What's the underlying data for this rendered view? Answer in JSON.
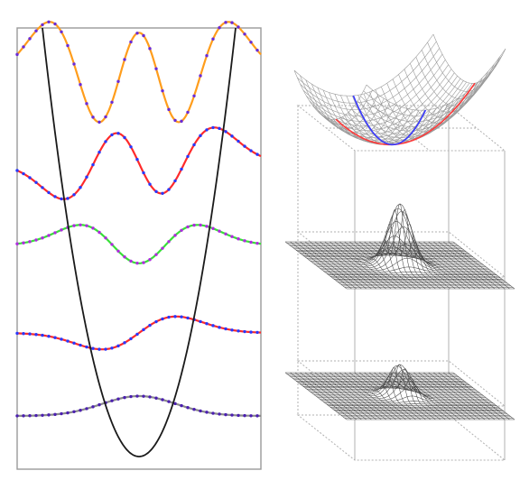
{
  "left_panel": {
    "potential": {
      "shape": "parabola",
      "color": "#1a1a1a"
    },
    "wavefunctions": [
      {
        "n": 4,
        "line_color": "#ff9d1c",
        "dot_color": "#6a2bd6"
      },
      {
        "n": 3,
        "line_color": "#ff2a2a",
        "dot_color": "#2838ff"
      },
      {
        "n": 2,
        "line_color": "#38e038",
        "dot_color": "#b02be0"
      },
      {
        "n": 1,
        "line_color": "#ff2a2a",
        "dot_color": "#2838ff"
      },
      {
        "n": 0,
        "line_color": "#8a8a8a",
        "dot_color": "#4b1fb0"
      }
    ]
  },
  "right_panel": {
    "bowl_surface": {
      "mesh_color": "#9a9a9a",
      "curve_a_color": "#ff3b3b",
      "curve_b_color": "#3a3aff"
    },
    "gaussian_surfaces": [
      {
        "label": "upper-peak",
        "shape": "single-peak"
      },
      {
        "label": "lower-peak",
        "shape": "double-lobe"
      }
    ],
    "box_color": "#b0b0b0"
  },
  "colors": {
    "frame": "#9a9a9a",
    "mesh": "#4a4a4a",
    "background": "#ffffff"
  }
}
